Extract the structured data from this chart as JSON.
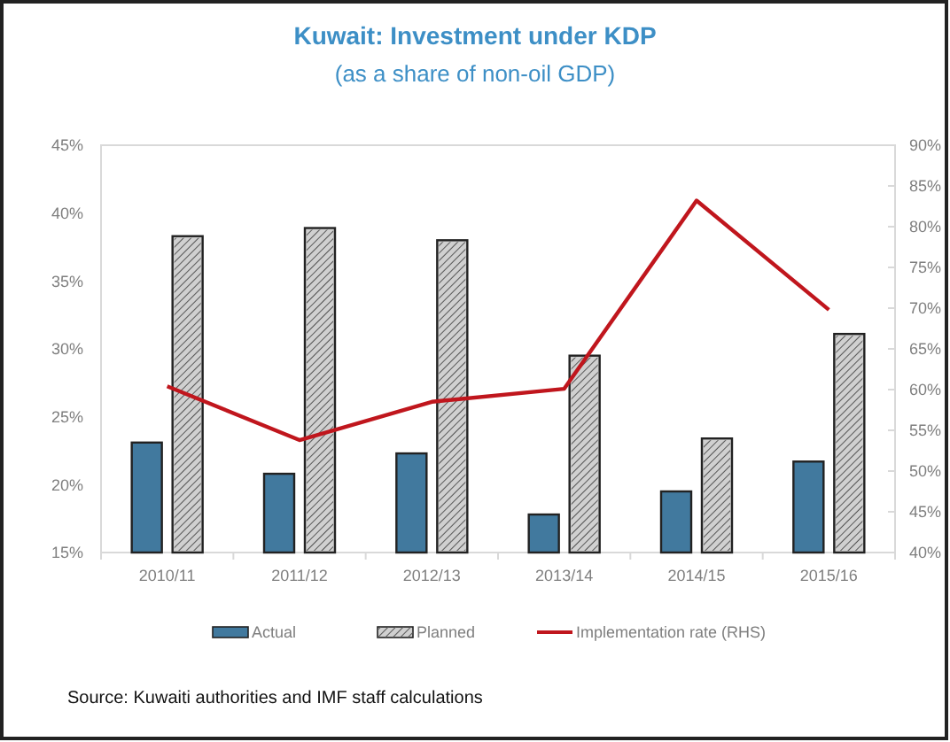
{
  "chart_data": {
    "type": "bar",
    "title": "Kuwait: Investment under KDP",
    "subtitle": "(as a share of non-oil GDP)",
    "categories": [
      "2010/11",
      "2011/12",
      "2012/13",
      "2013/14",
      "2014/15",
      "2015/16"
    ],
    "series": [
      {
        "name": "Actual",
        "color": "#41799e",
        "values": [
          23.1,
          20.8,
          22.3,
          17.8,
          19.5,
          21.7
        ]
      },
      {
        "name": "Planned",
        "color": "#d0d0d0",
        "values": [
          38.3,
          38.9,
          38.0,
          29.5,
          23.4,
          31.1
        ]
      },
      {
        "name": "Implementation rate (RHS)",
        "type": "line",
        "axis": "y2",
        "color": "#c0161d",
        "values": [
          60.4,
          53.8,
          58.5,
          60.1,
          83.2,
          69.8
        ]
      }
    ],
    "ylim": [
      15,
      45
    ],
    "yticks": [
      {
        "value": 15,
        "label": "15%"
      },
      {
        "value": 20,
        "label": "20%"
      },
      {
        "value": 25,
        "label": "25%"
      },
      {
        "value": 30,
        "label": "30%"
      },
      {
        "value": 35,
        "label": "35%"
      },
      {
        "value": 40,
        "label": "40%"
      },
      {
        "value": 45,
        "label": "45%"
      }
    ],
    "y2lim": [
      40,
      90
    ],
    "y2ticks": [
      {
        "value": 40,
        "label": "40%"
      },
      {
        "value": 45,
        "label": "45%"
      },
      {
        "value": 50,
        "label": "50%"
      },
      {
        "value": 55,
        "label": "55%"
      },
      {
        "value": 60,
        "label": "60%"
      },
      {
        "value": 65,
        "label": "65%"
      },
      {
        "value": 70,
        "label": "70%"
      },
      {
        "value": 75,
        "label": "75%"
      },
      {
        "value": 80,
        "label": "80%"
      },
      {
        "value": 85,
        "label": "85%"
      },
      {
        "value": 90,
        "label": "90%"
      }
    ],
    "grid": false,
    "legend": "bottom",
    "marker": "none",
    "line_style": "solid",
    "annotations": [
      "Source: Kuwaiti authorities and IMF staff calculations"
    ]
  }
}
